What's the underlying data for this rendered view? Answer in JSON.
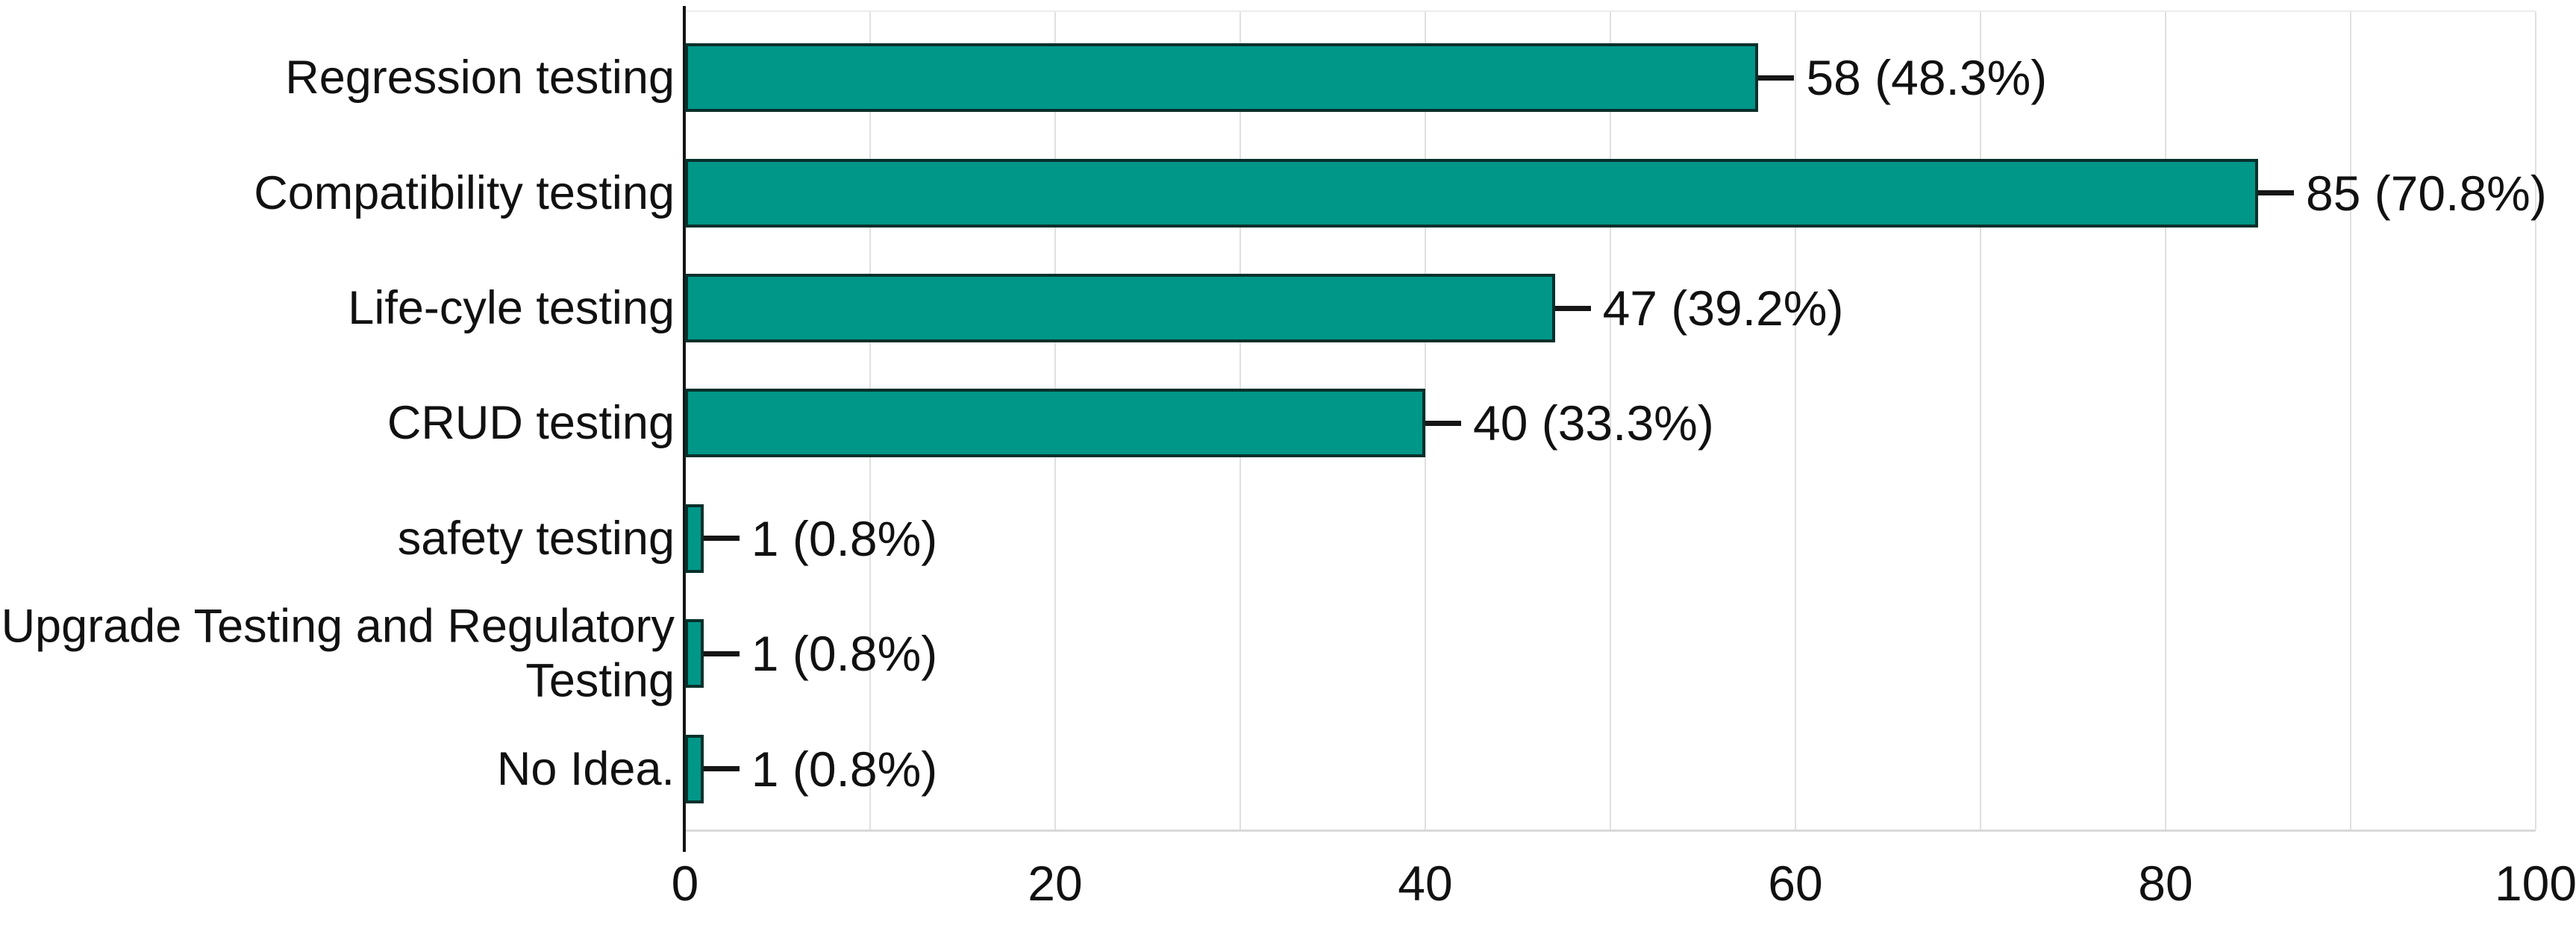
{
  "chart_data": {
    "type": "bar",
    "orientation": "horizontal",
    "title": "",
    "xlabel": "",
    "ylabel": "",
    "categories": [
      "Regression testing",
      "Compatibility testing",
      "Life-cyle testing",
      "CRUD testing",
      "safety testing",
      "Upgrade Testing and Regulatory\nTesting",
      "No Idea."
    ],
    "values": [
      58,
      85,
      47,
      40,
      1,
      1,
      1
    ],
    "value_labels": [
      "58 (48.3%)",
      "85 (70.8%)",
      "47 (39.2%)",
      "40 (33.3%)",
      "1 (0.8%)",
      "1 (0.8%)",
      "1 (0.8%)"
    ],
    "x_ticks": [
      "0",
      "20",
      "40",
      "60",
      "80",
      "100"
    ],
    "x_tick_values": [
      0,
      20,
      40,
      60,
      80,
      100
    ],
    "xlim": [
      0,
      100
    ],
    "gridline_step": 10,
    "grid": true,
    "legend_position": "none",
    "colors": {
      "bar_fill": "#009688",
      "bar_border": "#08302b",
      "axis": "#141414",
      "gridline": "#e0e0e0",
      "text": "#111111",
      "background": "#ffffff"
    }
  }
}
